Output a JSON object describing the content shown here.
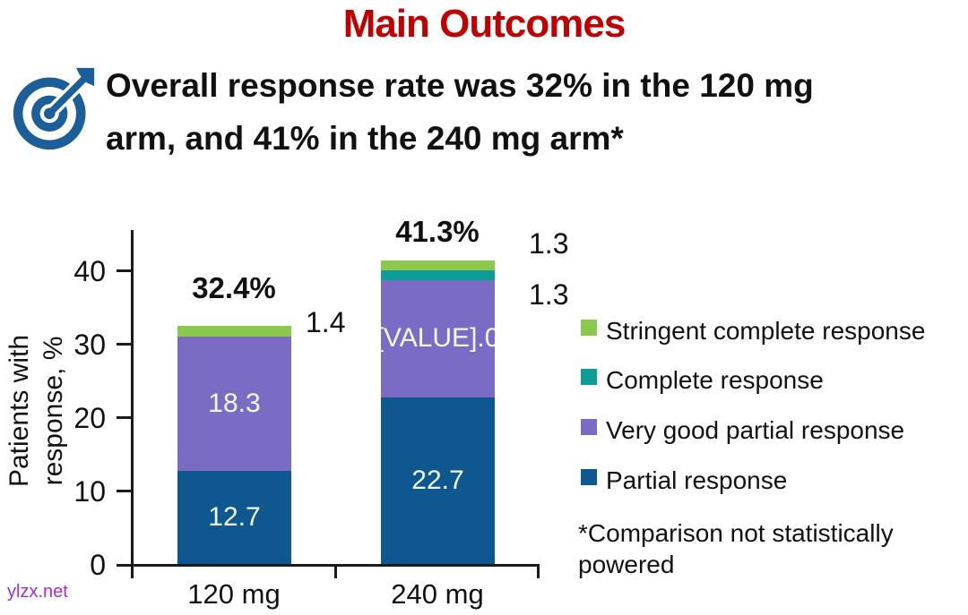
{
  "page": {
    "title": "Main Outcomes",
    "title_color": "#c00000"
  },
  "key_message": {
    "icon": "target-dart-icon",
    "lines": [
      "Overall response rate was 32% in the 120 mg",
      "arm, and 41% in the 240 mg arm*"
    ],
    "full_text": "Overall response rate was 32% in the 120 mg arm, and 41% in the 240 mg arm*"
  },
  "chart_data": {
    "type": "bar",
    "stacked": true,
    "categories": [
      "120 mg",
      "240 mg"
    ],
    "ylabel": "Patients with response, %",
    "ylabel_lines": [
      "Patients with",
      "response, %"
    ],
    "yticks": [
      "0",
      "10",
      "20",
      "30",
      "40"
    ],
    "ylim": [
      0,
      45
    ],
    "grid": false,
    "legend_position": "right",
    "series": [
      {
        "name": "Partial response",
        "slug": "partial-response",
        "color": "#0f578f",
        "values": [
          12.7,
          22.7
        ],
        "inside_labels": [
          "12.7",
          "22.7"
        ]
      },
      {
        "name": "Very good partial response",
        "slug": "very-good-partial-response",
        "color": "#7a6cc5",
        "values": [
          18.3,
          16.0
        ],
        "inside_labels": [
          "18.3",
          "[VALUE].0"
        ]
      },
      {
        "name": "Complete response",
        "slug": "complete-response",
        "color": "#0d9c96",
        "values": [
          0,
          1.3
        ],
        "inside_labels": [
          "",
          ""
        ]
      },
      {
        "name": "Stringent complete response",
        "slug": "stringent-complete-response",
        "color": "#8cc84d",
        "values": [
          1.4,
          1.3
        ],
        "inside_labels": [
          "",
          ""
        ]
      }
    ],
    "totals": [
      "32.4%",
      "41.3%"
    ],
    "outside_labels": {
      "stringent_120": "1.4",
      "stringent_240": "1.3",
      "complete_240": "1.3"
    }
  },
  "legend": {
    "items": [
      {
        "label": "Stringent complete response",
        "color": "#8cc84d"
      },
      {
        "label": "Complete response",
        "color": "#0d9c96"
      },
      {
        "label": "Very good partial response",
        "color": "#7a6cc5"
      },
      {
        "label": "Partial response",
        "color": "#0f578f"
      }
    ]
  },
  "footnote": {
    "text": "*Comparison not statistically powered"
  },
  "watermark": {
    "text": "ylzx.net"
  }
}
